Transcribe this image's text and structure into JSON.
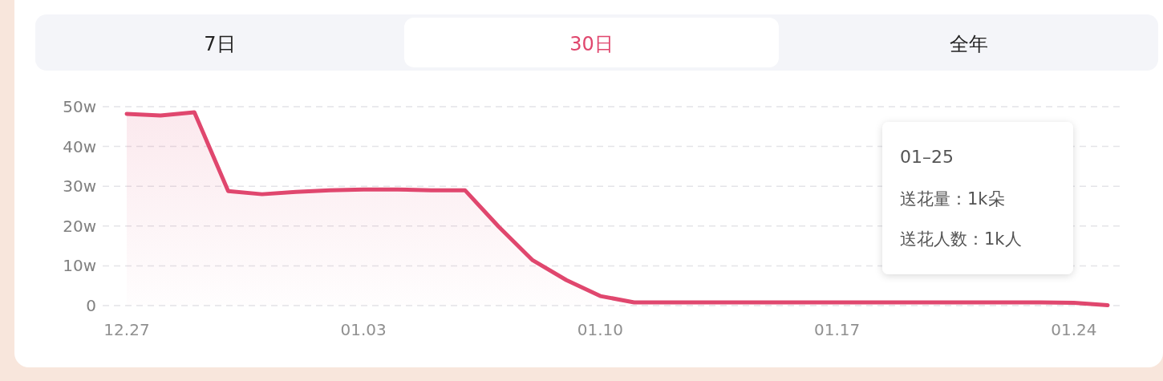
{
  "chart_data": {
    "type": "area",
    "categories": [
      "12.27",
      null,
      null,
      null,
      null,
      null,
      null,
      "01.03",
      null,
      null,
      null,
      null,
      null,
      null,
      "01.10",
      null,
      null,
      null,
      null,
      null,
      null,
      "01.17",
      null,
      null,
      null,
      null,
      null,
      null,
      "01.24",
      null
    ],
    "series": [
      {
        "color": "#e0476e",
        "values": [
          48.2,
          47.8,
          48.6,
          28.8,
          28.0,
          28.6,
          29.0,
          29.2,
          29.2,
          29.0,
          29.0,
          19.8,
          11.4,
          6.4,
          2.4,
          0.8,
          0.8,
          0.8,
          0.8,
          0.8,
          0.8,
          0.8,
          0.8,
          0.8,
          0.8,
          0.8,
          0.8,
          0.8,
          0.7,
          0.1
        ]
      }
    ],
    "ylim": [
      0,
      50
    ],
    "yticks": [
      0,
      {
        "value": 10,
        "label": "10w"
      },
      {
        "value": 20,
        "label": "20w"
      },
      {
        "value": 30,
        "label": "30w"
      },
      {
        "value": 40,
        "label": "40w"
      },
      {
        "value": 50,
        "label": "50w"
      }
    ],
    "grid": "y",
    "annotations": [
      "7日",
      "30日",
      "全年",
      "01–25",
      "送花量：1k朵",
      "送花人数：1k人"
    ]
  }
}
